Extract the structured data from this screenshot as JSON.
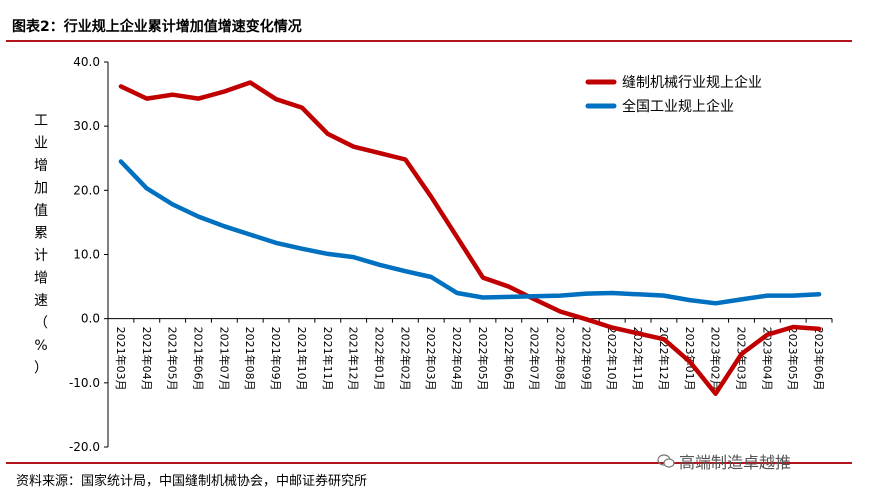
{
  "header": {
    "title": "图表2：行业规上企业累计增加值增速变化情况"
  },
  "footer": {
    "source": "资料来源：国家统计局，中国缝制机械协会，中邮证券研究所",
    "watermark": "高端制造卓越推"
  },
  "colors": {
    "accent": "#b3131b",
    "series_red": "#c00000",
    "series_blue": "#0070c0"
  },
  "chart_data": {
    "type": "line",
    "title": "行业规上企业累计增加值增速变化情况",
    "ylabel": "工业增加值累计增速（%）",
    "xlabel": "",
    "ylim": [
      -20,
      40
    ],
    "yticks": [
      "40.0",
      "30.0",
      "20.0",
      "10.0",
      "0.0",
      "-10.0",
      "-20.0"
    ],
    "grid": false,
    "legend": "top-right",
    "categories": [
      "2021年03月",
      "2021年04月",
      "2021年05月",
      "2021年06月",
      "2021年07月",
      "2021年08月",
      "2021年09月",
      "2021年10月",
      "2021年11月",
      "2021年12月",
      "2022年01月",
      "2022年02月",
      "2022年03月",
      "2022年04月",
      "2022年05月",
      "2022年06月",
      "2022年07月",
      "2022年08月",
      "2022年09月",
      "2022年10月",
      "2022年11月",
      "2022年12月",
      "2023年01月",
      "2023年02月",
      "2023年03月",
      "2023年04月",
      "2023年05月",
      "2023年06月"
    ],
    "series": [
      {
        "name": "缝制机械行业规上企业",
        "color": "#c00000",
        "values": [
          36.2,
          34.3,
          34.9,
          34.3,
          35.4,
          36.8,
          34.2,
          32.9,
          28.8,
          26.8,
          25.8,
          24.8,
          19.0,
          12.7,
          6.4,
          5.0,
          3.0,
          1.1,
          -0.1,
          -1.4,
          -2.3,
          -3.2,
          -6.7,
          -11.7,
          -5.5,
          -2.5,
          -1.3,
          -1.6
        ]
      },
      {
        "name": "全国工业规上企业",
        "color": "#0070c0",
        "values": [
          24.5,
          20.3,
          17.8,
          15.9,
          14.4,
          13.1,
          11.8,
          10.9,
          10.1,
          9.6,
          8.4,
          7.4,
          6.5,
          4.0,
          3.3,
          3.4,
          3.5,
          3.6,
          3.9,
          4.0,
          3.8,
          3.6,
          2.9,
          2.4,
          3.0,
          3.6,
          3.6,
          3.8
        ]
      }
    ]
  }
}
